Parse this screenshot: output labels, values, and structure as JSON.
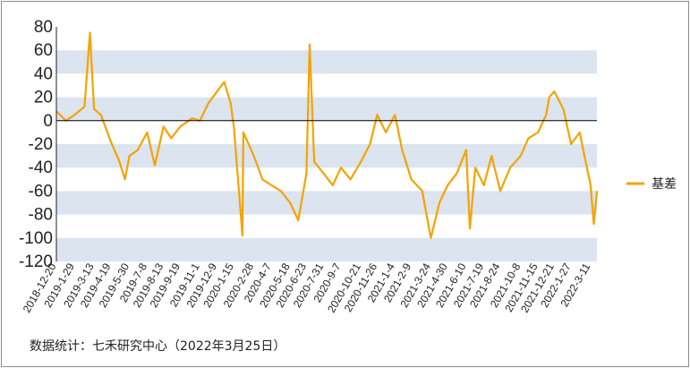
{
  "colors": {
    "band": "#dbe4ef",
    "series": "#f5a300",
    "zero_line": "#000000"
  },
  "chart_data": {
    "type": "line",
    "title": "",
    "xlabel": "",
    "ylabel": "",
    "ylim": [
      -120,
      80
    ],
    "y_ticks": [
      80,
      60,
      40,
      20,
      0,
      -20,
      -40,
      -60,
      -80,
      -100,
      -120
    ],
    "x_tick_labels": [
      "2018-12-20",
      "2019-1-29",
      "2019-3-13",
      "2019-4-19",
      "2019-5-30",
      "2019-7-8",
      "2019-8-13",
      "2019-9-19",
      "2019-11-1",
      "2019-12-9",
      "2020-1-15",
      "2020-2-28",
      "2020-4-7",
      "2020-5-18",
      "2020-6-23",
      "2020-7-31",
      "2020-9-7",
      "2020-10-21",
      "2020-11-26",
      "2021-1-4",
      "2021-2-9",
      "2021-3-24",
      "2021-4-30",
      "2021-6-10",
      "2021-7-19",
      "2021-8-24",
      "2021-10-8",
      "2021-11-15",
      "2021-12-21",
      "2022-1-27",
      "2022-3-11"
    ],
    "grid": "alternating horizontal bands",
    "legend_position": "right",
    "series": [
      {
        "name": "基差",
        "x": [
          "2018-12-20",
          "2019-1-10",
          "2019-1-29",
          "2019-2-20",
          "2019-3-4",
          "2019-3-13",
          "2019-3-28",
          "2019-4-19",
          "2019-5-8",
          "2019-5-20",
          "2019-5-30",
          "2019-6-17",
          "2019-7-8",
          "2019-7-25",
          "2019-8-13",
          "2019-8-30",
          "2019-9-19",
          "2019-10-15",
          "2019-11-1",
          "2019-11-20",
          "2019-12-9",
          "2019-12-25",
          "2020-1-8",
          "2020-1-15",
          "2020-2-3",
          "2020-2-5",
          "2020-2-28",
          "2020-3-18",
          "2020-4-7",
          "2020-4-28",
          "2020-5-18",
          "2020-6-5",
          "2020-6-23",
          "2020-6-30",
          "2020-7-10",
          "2020-7-31",
          "2020-8-20",
          "2020-9-7",
          "2020-9-28",
          "2020-10-21",
          "2020-11-10",
          "2020-11-26",
          "2020-12-15",
          "2021-1-4",
          "2021-1-20",
          "2021-2-9",
          "2021-3-5",
          "2021-3-24",
          "2021-4-12",
          "2021-4-30",
          "2021-5-20",
          "2021-6-10",
          "2021-6-18",
          "2021-6-30",
          "2021-7-19",
          "2021-8-5",
          "2021-8-24",
          "2021-9-15",
          "2021-10-8",
          "2021-10-25",
          "2021-11-15",
          "2021-12-3",
          "2021-12-10",
          "2021-12-21",
          "2022-1-10",
          "2022-1-27",
          "2022-2-15",
          "2022-3-11",
          "2022-3-18",
          "2022-3-25"
        ],
        "values": [
          8,
          0,
          5,
          12,
          75,
          10,
          5,
          -18,
          -35,
          -50,
          -30,
          -25,
          -10,
          -38,
          -5,
          -15,
          -5,
          2,
          0,
          15,
          25,
          33,
          15,
          -5,
          -98,
          -10,
          -30,
          -50,
          -55,
          -60,
          -70,
          -85,
          -45,
          65,
          -35,
          -45,
          -55,
          -40,
          -50,
          -35,
          -20,
          5,
          -10,
          5,
          -25,
          -50,
          -60,
          -100,
          -70,
          -55,
          -45,
          -25,
          -92,
          -40,
          -55,
          -30,
          -60,
          -40,
          -30,
          -15,
          -10,
          5,
          20,
          25,
          10,
          -20,
          -10,
          -55,
          -88,
          -60
        ]
      }
    ]
  },
  "legend": {
    "label": "基差"
  },
  "source_text": "数据统计：七禾研究中心（2022年3月25日）"
}
